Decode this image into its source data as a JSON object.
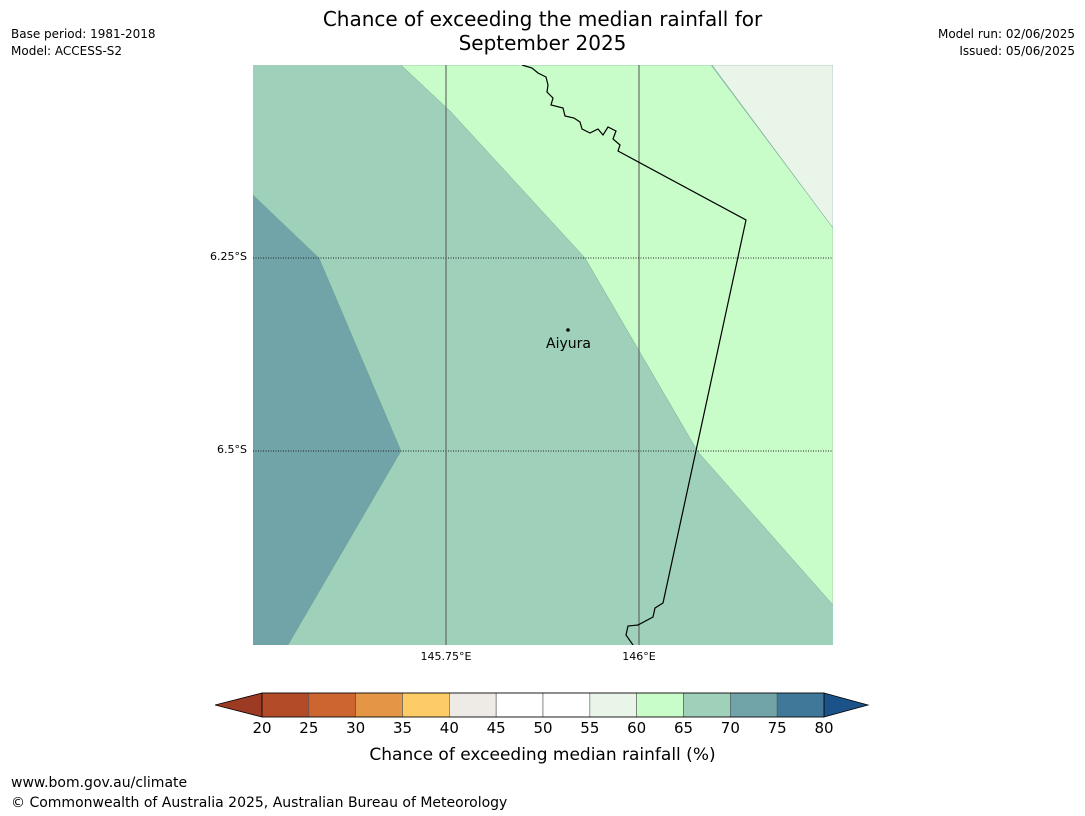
{
  "title_line1": "Chance of exceeding the median rainfall for",
  "title_line2": "September 2025",
  "meta_left": {
    "base_period": "Base period: 1981-2018",
    "model": "Model: ACCESS-S2"
  },
  "meta_right": {
    "model_run": "Model run: 02/06/2025",
    "issued": "Issued: 05/06/2025"
  },
  "map": {
    "lat_labels": [
      "6.25°S",
      "6.5°S"
    ],
    "lon_labels": [
      "145.75°E",
      "146°E"
    ],
    "city": "Aiyura",
    "regions": [
      {
        "category": "70-75",
        "color": "#70a4a8"
      },
      {
        "category": "65-70",
        "color": "#9ed0ba"
      },
      {
        "category": "60-65",
        "color": "#c8fcc8"
      },
      {
        "category": "55-60",
        "color": "#e8f5e8"
      }
    ]
  },
  "colorbar": {
    "ticks": [
      "20",
      "25",
      "30",
      "35",
      "40",
      "45",
      "50",
      "55",
      "60",
      "65",
      "70",
      "75",
      "80"
    ],
    "colors": [
      "#b34a28",
      "#cc6530",
      "#e49646",
      "#fdcc66",
      "#eeeae6",
      "#ffffff",
      "#ffffff",
      "#e8f5e8",
      "#c8fcc8",
      "#9ed0ba",
      "#70a4a8",
      "#3f7899"
    ],
    "under_color": "#9c3a24",
    "over_color": "#1a5289",
    "label": "Chance of exceeding median rainfall (%)"
  },
  "footer": {
    "url": "www.bom.gov.au/climate",
    "copyright": "© Commonwealth of Australia 2025, Australian Bureau of Meteorology"
  }
}
